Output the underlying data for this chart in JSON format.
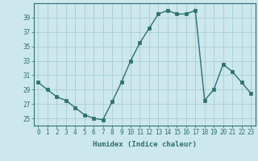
{
  "x": [
    0,
    1,
    2,
    3,
    4,
    5,
    6,
    7,
    8,
    9,
    10,
    11,
    12,
    13,
    14,
    15,
    16,
    17,
    18,
    19,
    20,
    21,
    22,
    23
  ],
  "y": [
    30,
    29,
    28,
    27.5,
    26.5,
    25.5,
    25,
    24.8,
    27.3,
    30,
    33,
    35.5,
    37.5,
    39.5,
    40,
    39.5,
    39.5,
    40,
    27.5,
    29,
    32.5,
    31.5,
    30,
    28.5
  ],
  "xlabel": "Humidex (Indice chaleur)",
  "ylim": [
    24,
    41
  ],
  "xlim": [
    -0.5,
    23.5
  ],
  "yticks": [
    25,
    27,
    29,
    31,
    33,
    35,
    37,
    39
  ],
  "xticks": [
    0,
    1,
    2,
    3,
    4,
    5,
    6,
    7,
    8,
    9,
    10,
    11,
    12,
    13,
    14,
    15,
    16,
    17,
    18,
    19,
    20,
    21,
    22,
    23
  ],
  "line_color": "#2d7070",
  "marker_color": "#2d7070",
  "bg_color": "#cce8ec",
  "grid_color": "#a0c8cc",
  "label_color": "#2d7070",
  "tick_color": "#2d7070",
  "tick_fontsize": 5.5,
  "xlabel_fontsize": 6.5,
  "marker_size": 2.5,
  "linewidth": 1.0
}
